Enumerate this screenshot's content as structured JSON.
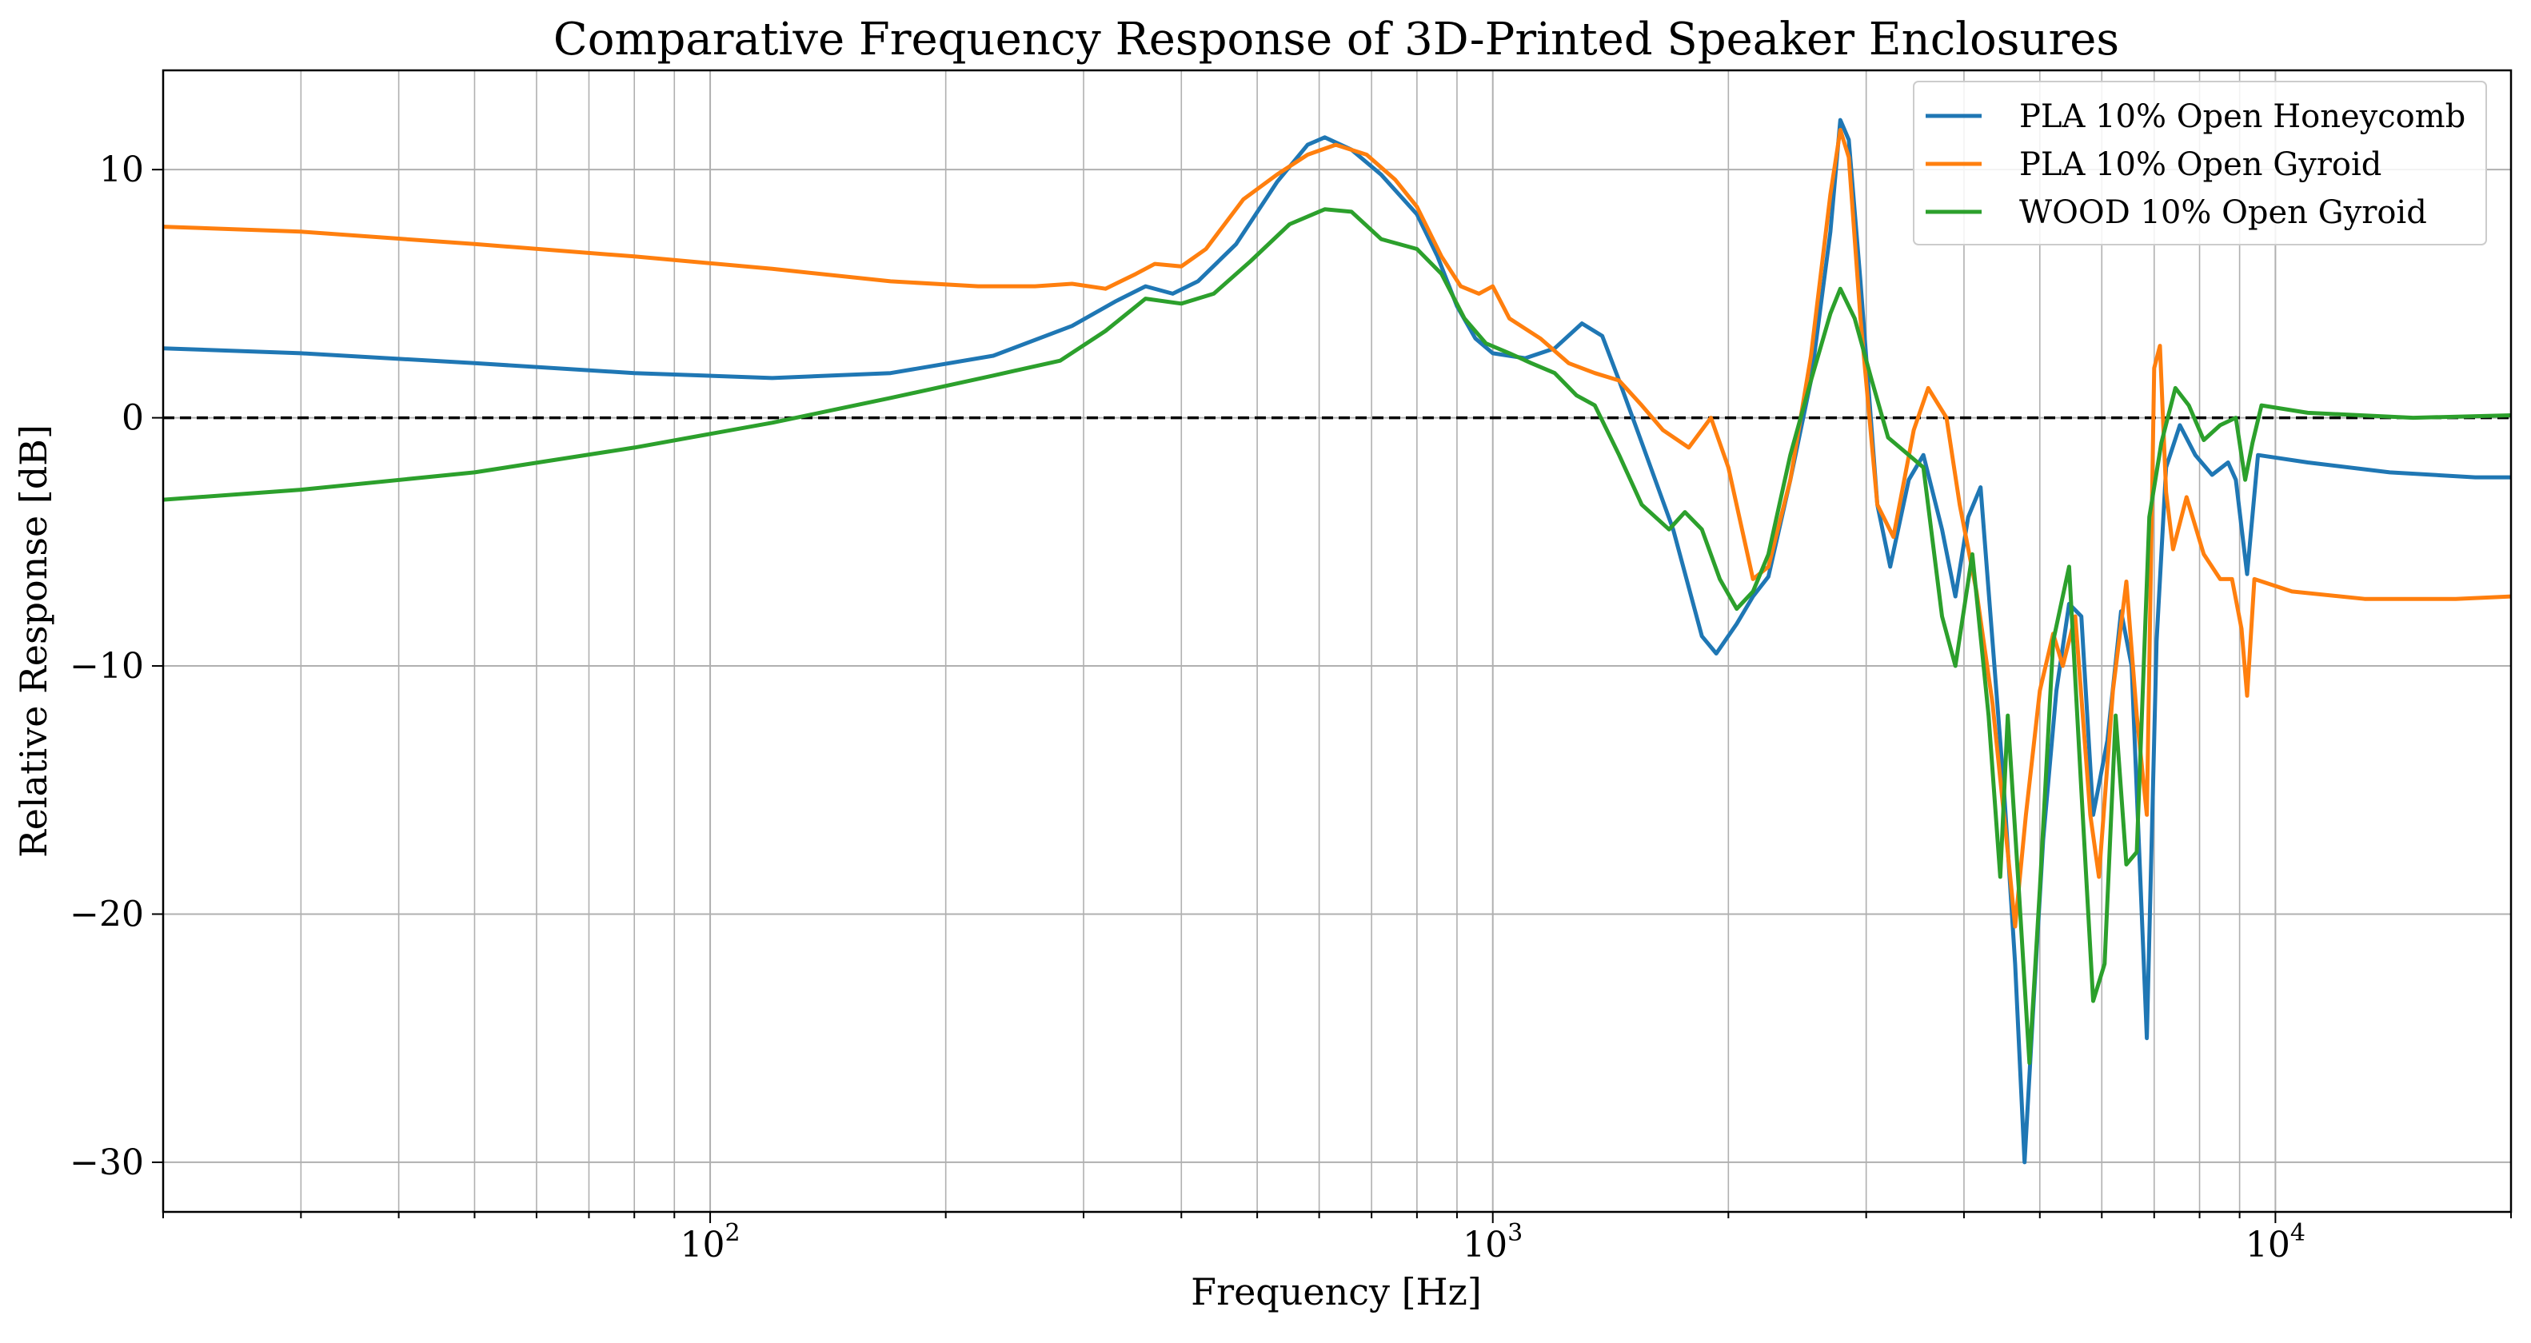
{
  "chart_data": {
    "type": "line",
    "title": "Comparative Frequency Response of 3D-Printed Speaker Enclosures",
    "xlabel": "Frequency [Hz]",
    "ylabel": "Relative Response [dB]",
    "xscale": "log",
    "xlim": [
      20,
      20000
    ],
    "ylim": [
      -32,
      14
    ],
    "x_ticks": [
      {
        "value": 100,
        "base": "10",
        "exp": "2"
      },
      {
        "value": 1000,
        "base": "10",
        "exp": "3"
      },
      {
        "value": 10000,
        "base": "10",
        "exp": "4"
      }
    ],
    "y_ticks": [
      {
        "value": 10,
        "label": "10"
      },
      {
        "value": 0,
        "label": "0"
      },
      {
        "value": -10,
        "label": "−10"
      },
      {
        "value": -20,
        "label": "−20"
      },
      {
        "value": -30,
        "label": "−30"
      }
    ],
    "grid": true,
    "legend_position": "top-right",
    "reference_line": {
      "y": 0,
      "style": "dashed",
      "color": "#000000"
    },
    "series": [
      {
        "name": "PLA 10% Open Honeycomb",
        "color": "#1f77b4",
        "points": [
          [
            20,
            2.8
          ],
          [
            30,
            2.6
          ],
          [
            50,
            2.2
          ],
          [
            80,
            1.8
          ],
          [
            120,
            1.6
          ],
          [
            170,
            1.8
          ],
          [
            230,
            2.5
          ],
          [
            290,
            3.7
          ],
          [
            330,
            4.7
          ],
          [
            360,
            5.3
          ],
          [
            390,
            5.0
          ],
          [
            420,
            5.5
          ],
          [
            470,
            7.0
          ],
          [
            530,
            9.5
          ],
          [
            580,
            11.0
          ],
          [
            610,
            11.3
          ],
          [
            660,
            10.8
          ],
          [
            720,
            9.8
          ],
          [
            800,
            8.2
          ],
          [
            850,
            6.5
          ],
          [
            900,
            4.5
          ],
          [
            950,
            3.2
          ],
          [
            1000,
            2.6
          ],
          [
            1100,
            2.4
          ],
          [
            1200,
            2.8
          ],
          [
            1300,
            3.8
          ],
          [
            1380,
            3.3
          ],
          [
            1450,
            1.5
          ],
          [
            1550,
            -1.0
          ],
          [
            1700,
            -4.5
          ],
          [
            1850,
            -8.8
          ],
          [
            1930,
            -9.5
          ],
          [
            2050,
            -8.3
          ],
          [
            2150,
            -7.2
          ],
          [
            2250,
            -6.4
          ],
          [
            2400,
            -2.5
          ],
          [
            2550,
            1.5
          ],
          [
            2700,
            7.5
          ],
          [
            2780,
            12.0
          ],
          [
            2850,
            11.2
          ],
          [
            2950,
            5.5
          ],
          [
            3100,
            -3.5
          ],
          [
            3220,
            -6.0
          ],
          [
            3400,
            -2.5
          ],
          [
            3550,
            -1.5
          ],
          [
            3750,
            -4.5
          ],
          [
            3900,
            -7.2
          ],
          [
            4050,
            -4.0
          ],
          [
            4200,
            -2.8
          ],
          [
            4350,
            -9.0
          ],
          [
            4500,
            -15.0
          ],
          [
            4650,
            -22.0
          ],
          [
            4780,
            -30.0
          ],
          [
            4900,
            -24.0
          ],
          [
            5050,
            -17.0
          ],
          [
            5250,
            -11.0
          ],
          [
            5450,
            -7.5
          ],
          [
            5650,
            -8.0
          ],
          [
            5850,
            -16.0
          ],
          [
            6100,
            -13.0
          ],
          [
            6350,
            -7.8
          ],
          [
            6550,
            -10.0
          ],
          [
            6850,
            -25.0
          ],
          [
            7050,
            -9.0
          ],
          [
            7250,
            -2.0
          ],
          [
            7550,
            -0.3
          ],
          [
            7900,
            -1.5
          ],
          [
            8300,
            -2.3
          ],
          [
            8700,
            -1.8
          ],
          [
            8900,
            -2.5
          ],
          [
            9200,
            -6.3
          ],
          [
            9500,
            -1.5
          ],
          [
            11000,
            -1.8
          ],
          [
            14000,
            -2.2
          ],
          [
            18000,
            -2.4
          ],
          [
            20000,
            -2.4
          ]
        ]
      },
      {
        "name": "PLA 10% Open Gyroid",
        "color": "#ff7f0e",
        "points": [
          [
            20,
            7.7
          ],
          [
            30,
            7.5
          ],
          [
            50,
            7.0
          ],
          [
            80,
            6.5
          ],
          [
            120,
            6.0
          ],
          [
            170,
            5.5
          ],
          [
            220,
            5.3
          ],
          [
            260,
            5.3
          ],
          [
            290,
            5.4
          ],
          [
            320,
            5.2
          ],
          [
            350,
            5.8
          ],
          [
            370,
            6.2
          ],
          [
            400,
            6.1
          ],
          [
            430,
            6.8
          ],
          [
            480,
            8.8
          ],
          [
            530,
            9.8
          ],
          [
            580,
            10.6
          ],
          [
            630,
            11.0
          ],
          [
            690,
            10.6
          ],
          [
            750,
            9.6
          ],
          [
            800,
            8.5
          ],
          [
            860,
            6.5
          ],
          [
            910,
            5.3
          ],
          [
            960,
            5.0
          ],
          [
            1000,
            5.3
          ],
          [
            1050,
            4.0
          ],
          [
            1150,
            3.2
          ],
          [
            1250,
            2.2
          ],
          [
            1350,
            1.8
          ],
          [
            1450,
            1.5
          ],
          [
            1550,
            0.5
          ],
          [
            1650,
            -0.5
          ],
          [
            1780,
            -1.2
          ],
          [
            1900,
            0.0
          ],
          [
            2000,
            -2.0
          ],
          [
            2150,
            -6.5
          ],
          [
            2250,
            -6.0
          ],
          [
            2400,
            -2.5
          ],
          [
            2550,
            2.5
          ],
          [
            2700,
            9.0
          ],
          [
            2780,
            11.6
          ],
          [
            2850,
            10.5
          ],
          [
            2950,
            4.0
          ],
          [
            3100,
            -3.5
          ],
          [
            3250,
            -4.8
          ],
          [
            3450,
            -0.5
          ],
          [
            3600,
            1.2
          ],
          [
            3800,
            0.0
          ],
          [
            3950,
            -3.5
          ],
          [
            4150,
            -7.0
          ],
          [
            4350,
            -11.5
          ],
          [
            4550,
            -17.5
          ],
          [
            4650,
            -20.5
          ],
          [
            4800,
            -16.0
          ],
          [
            5000,
            -11.0
          ],
          [
            5200,
            -8.7
          ],
          [
            5350,
            -10.0
          ],
          [
            5550,
            -8.0
          ],
          [
            5800,
            -16.0
          ],
          [
            5950,
            -18.5
          ],
          [
            6200,
            -11.0
          ],
          [
            6450,
            -6.6
          ],
          [
            6650,
            -12.0
          ],
          [
            6850,
            -16.0
          ],
          [
            7000,
            2.0
          ],
          [
            7120,
            2.9
          ],
          [
            7250,
            -3.0
          ],
          [
            7400,
            -5.3
          ],
          [
            7700,
            -3.2
          ],
          [
            8100,
            -5.5
          ],
          [
            8500,
            -6.5
          ],
          [
            8800,
            -6.5
          ],
          [
            9050,
            -8.5
          ],
          [
            9200,
            -11.2
          ],
          [
            9400,
            -6.5
          ],
          [
            10500,
            -7.0
          ],
          [
            13000,
            -7.3
          ],
          [
            17000,
            -7.3
          ],
          [
            20000,
            -7.2
          ]
        ]
      },
      {
        "name": "WOOD 10% Open Gyroid",
        "color": "#2ca02c",
        "points": [
          [
            20,
            -3.3
          ],
          [
            30,
            -2.9
          ],
          [
            50,
            -2.2
          ],
          [
            80,
            -1.2
          ],
          [
            120,
            -0.2
          ],
          [
            170,
            0.8
          ],
          [
            230,
            1.7
          ],
          [
            280,
            2.3
          ],
          [
            320,
            3.5
          ],
          [
            360,
            4.8
          ],
          [
            400,
            4.6
          ],
          [
            440,
            5.0
          ],
          [
            490,
            6.3
          ],
          [
            550,
            7.8
          ],
          [
            610,
            8.4
          ],
          [
            660,
            8.3
          ],
          [
            720,
            7.2
          ],
          [
            800,
            6.8
          ],
          [
            860,
            5.8
          ],
          [
            920,
            4.0
          ],
          [
            980,
            3.0
          ],
          [
            1050,
            2.6
          ],
          [
            1120,
            2.2
          ],
          [
            1200,
            1.8
          ],
          [
            1280,
            0.9
          ],
          [
            1350,
            0.5
          ],
          [
            1450,
            -1.5
          ],
          [
            1550,
            -3.5
          ],
          [
            1680,
            -4.5
          ],
          [
            1760,
            -3.8
          ],
          [
            1850,
            -4.5
          ],
          [
            1950,
            -6.5
          ],
          [
            2050,
            -7.7
          ],
          [
            2150,
            -7.0
          ],
          [
            2250,
            -5.5
          ],
          [
            2400,
            -1.5
          ],
          [
            2550,
            1.5
          ],
          [
            2700,
            4.2
          ],
          [
            2780,
            5.2
          ],
          [
            2900,
            4.0
          ],
          [
            3050,
            1.5
          ],
          [
            3200,
            -0.8
          ],
          [
            3400,
            -1.5
          ],
          [
            3550,
            -2.0
          ],
          [
            3750,
            -8.0
          ],
          [
            3900,
            -10.0
          ],
          [
            4100,
            -5.5
          ],
          [
            4300,
            -12.0
          ],
          [
            4450,
            -18.5
          ],
          [
            4550,
            -12.0
          ],
          [
            4700,
            -19.0
          ],
          [
            4850,
            -26.0
          ],
          [
            5000,
            -19.0
          ],
          [
            5200,
            -9.0
          ],
          [
            5450,
            -6.0
          ],
          [
            5650,
            -15.0
          ],
          [
            5850,
            -23.5
          ],
          [
            6050,
            -22.0
          ],
          [
            6250,
            -12.0
          ],
          [
            6450,
            -18.0
          ],
          [
            6650,
            -17.5
          ],
          [
            6900,
            -4.0
          ],
          [
            7150,
            -1.0
          ],
          [
            7450,
            1.2
          ],
          [
            7750,
            0.5
          ],
          [
            8100,
            -0.9
          ],
          [
            8500,
            -0.3
          ],
          [
            8900,
            0.0
          ],
          [
            9150,
            -2.5
          ],
          [
            9350,
            -1.0
          ],
          [
            9600,
            0.5
          ],
          [
            11000,
            0.2
          ],
          [
            15000,
            0.0
          ],
          [
            20000,
            0.1
          ]
        ]
      }
    ]
  }
}
